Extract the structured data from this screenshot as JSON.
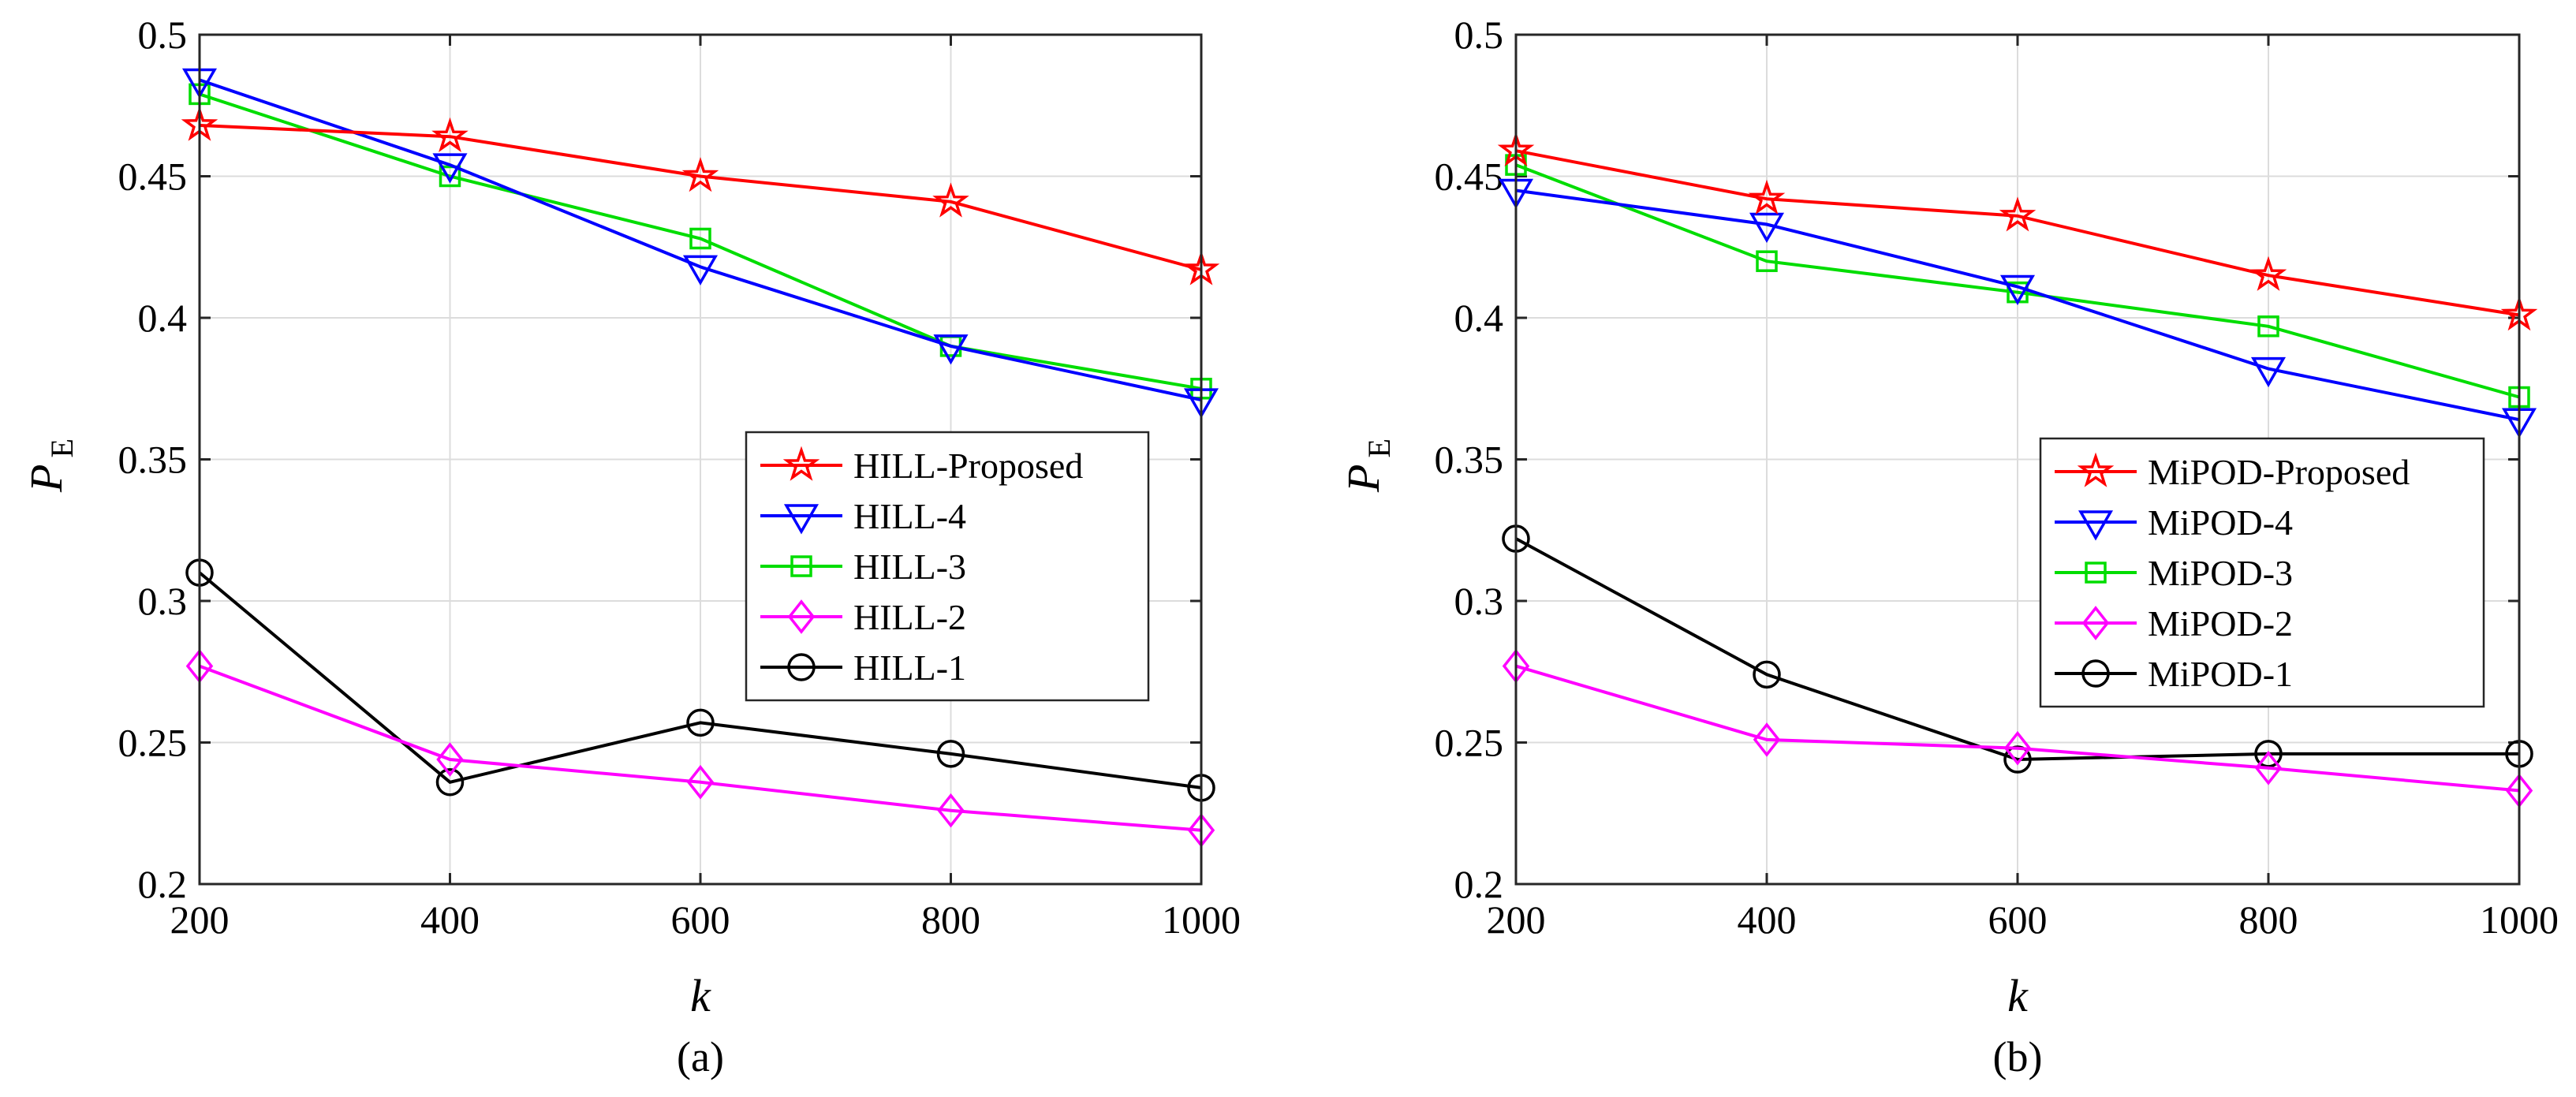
{
  "figure": {
    "panels": [
      {
        "caption": "(a)",
        "ylabel_main": "P",
        "ylabel_sub": "E",
        "xlabel": "k",
        "legend_position": "right"
      },
      {
        "caption": "(b)",
        "ylabel_main": "P",
        "ylabel_sub": "E",
        "xlabel": "k",
        "legend_position": "right"
      }
    ]
  },
  "chart_data": [
    {
      "type": "line",
      "title": "",
      "caption": "(a)",
      "xlabel": "k",
      "ylabel": "P_E",
      "x": [
        200,
        400,
        600,
        800,
        1000
      ],
      "xlim": [
        200,
        1000
      ],
      "ylim": [
        0.2,
        0.5
      ],
      "xticks": [
        "200",
        "400",
        "600",
        "800",
        "1000"
      ],
      "yticks": [
        "0.2",
        "0.25",
        "0.3",
        "0.35",
        "0.4",
        "0.45",
        "0.5"
      ],
      "grid": true,
      "series": [
        {
          "name": "HILL-Proposed",
          "color": "#ff0000",
          "marker": "star",
          "values": [
            0.468,
            0.464,
            0.45,
            0.441,
            0.417
          ]
        },
        {
          "name": "HILL-4",
          "color": "#0000ff",
          "marker": "triangle-down",
          "values": [
            0.484,
            0.454,
            0.418,
            0.39,
            0.371
          ]
        },
        {
          "name": "HILL-3",
          "color": "#00dd00",
          "marker": "square",
          "values": [
            0.479,
            0.45,
            0.428,
            0.39,
            0.375
          ]
        },
        {
          "name": "HILL-2",
          "color": "#ff00ff",
          "marker": "diamond",
          "values": [
            0.277,
            0.244,
            0.236,
            0.226,
            0.219
          ]
        },
        {
          "name": "HILL-1",
          "color": "#000000",
          "marker": "circle",
          "values": [
            0.31,
            0.236,
            0.257,
            0.246,
            0.234
          ]
        }
      ]
    },
    {
      "type": "line",
      "title": "",
      "caption": "(b)",
      "xlabel": "k",
      "ylabel": "P_E",
      "x": [
        200,
        400,
        600,
        800,
        1000
      ],
      "xlim": [
        200,
        1000
      ],
      "ylim": [
        0.2,
        0.5
      ],
      "xticks": [
        "200",
        "400",
        "600",
        "800",
        "1000"
      ],
      "yticks": [
        "0.2",
        "0.25",
        "0.3",
        "0.35",
        "0.4",
        "0.45",
        "0.5"
      ],
      "grid": true,
      "series": [
        {
          "name": "MiPOD-Proposed",
          "color": "#ff0000",
          "marker": "star",
          "values": [
            0.459,
            0.442,
            0.436,
            0.415,
            0.401
          ]
        },
        {
          "name": "MiPOD-4",
          "color": "#0000ff",
          "marker": "triangle-down",
          "values": [
            0.445,
            0.433,
            0.411,
            0.382,
            0.364
          ]
        },
        {
          "name": "MiPOD-3",
          "color": "#00dd00",
          "marker": "square",
          "values": [
            0.454,
            0.42,
            0.409,
            0.397,
            0.372
          ]
        },
        {
          "name": "MiPOD-2",
          "color": "#ff00ff",
          "marker": "diamond",
          "values": [
            0.277,
            0.251,
            0.248,
            0.241,
            0.233
          ]
        },
        {
          "name": "MiPOD-1",
          "color": "#000000",
          "marker": "circle",
          "values": [
            0.322,
            0.274,
            0.244,
            0.246,
            0.246
          ]
        }
      ]
    }
  ]
}
